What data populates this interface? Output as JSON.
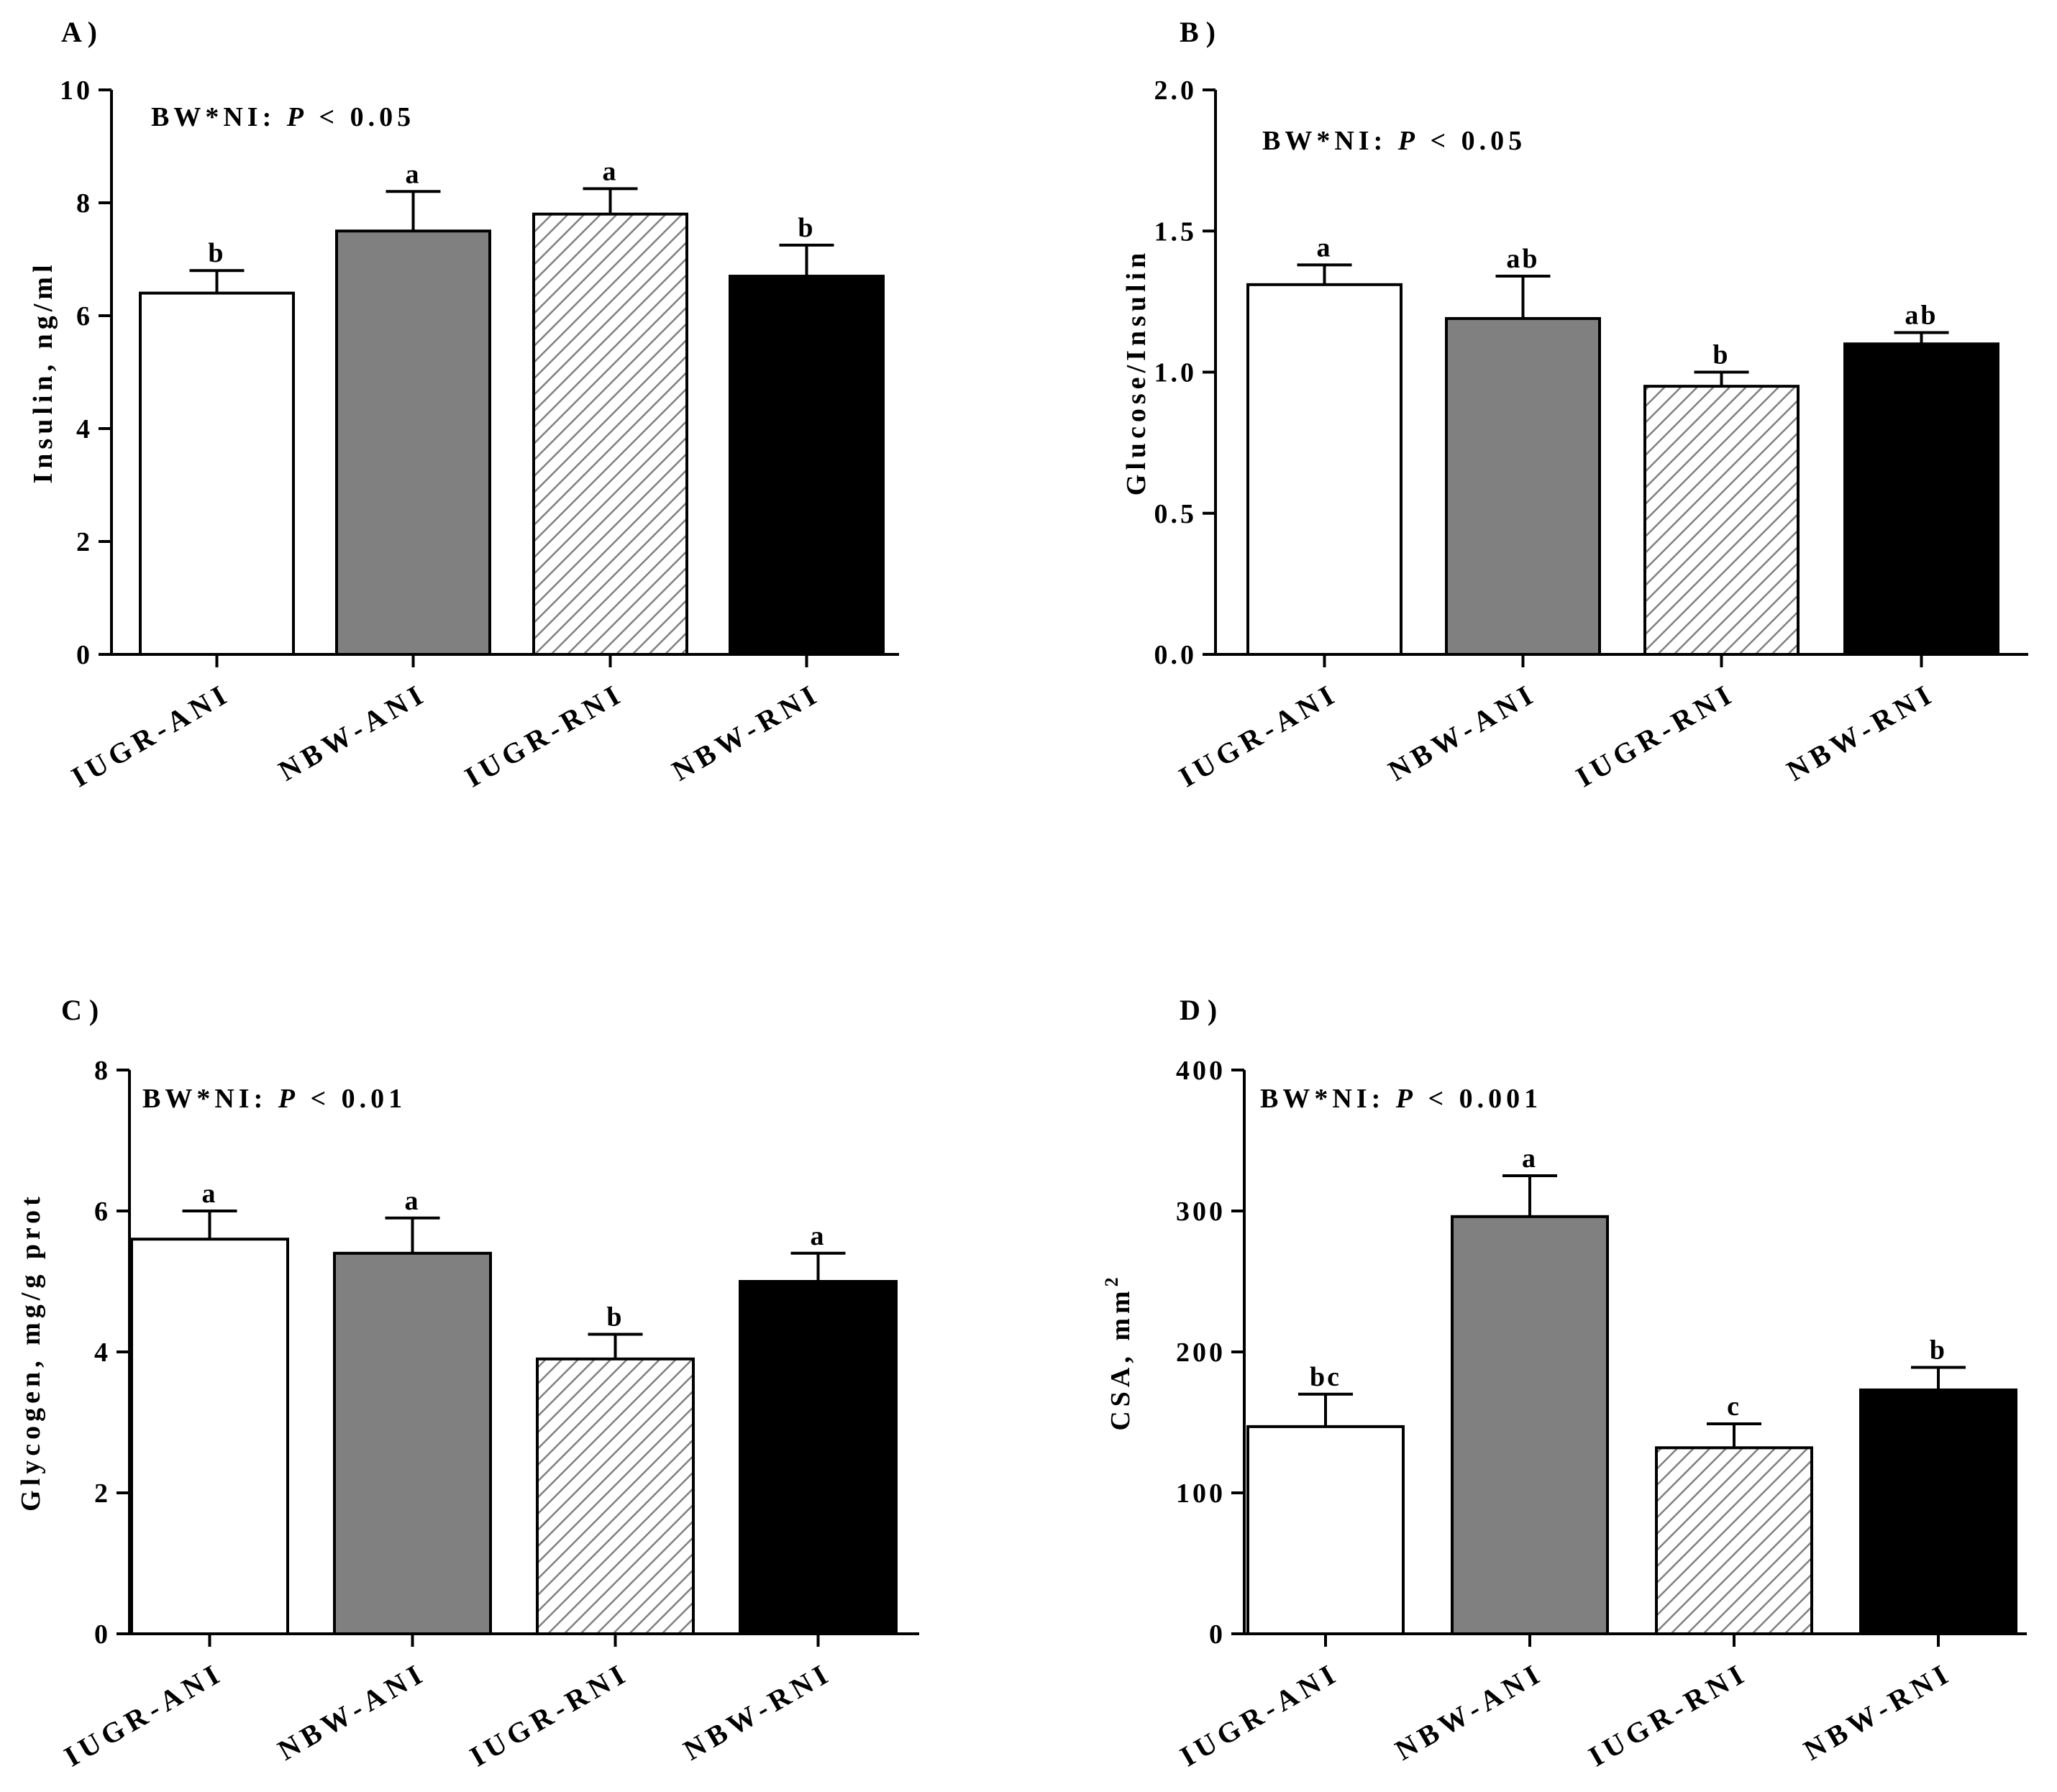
{
  "figure": {
    "categories": [
      "IUGR-ANI",
      "NBW-ANI",
      "IUGR-RNI",
      "NBW-RNI"
    ],
    "bar_styles": [
      {
        "fill": "#ffffff",
        "pattern": "none"
      },
      {
        "fill": "#808080",
        "pattern": "none"
      },
      {
        "fill": "#ffffff",
        "pattern": "hatch"
      },
      {
        "fill": "#000000",
        "pattern": "none"
      }
    ]
  },
  "chart_data": [
    {
      "type": "bar",
      "panel": "A )",
      "ylabel": "Insulin, ng/ml",
      "annotation_prefix": "BW*NI:",
      "annotation_p": "P",
      "annotation_suffix": "< 0.05",
      "ylim": [
        0,
        10
      ],
      "yticks": [
        0,
        2,
        4,
        6,
        8,
        10
      ],
      "ytick_labels": [
        "0",
        "2",
        "4",
        "6",
        "8",
        "10"
      ],
      "categories": [
        "IUGR-ANI",
        "NBW-ANI",
        "IUGR-RNI",
        "NBW-RNI"
      ],
      "values": [
        6.4,
        7.5,
        7.8,
        6.7
      ],
      "errors": [
        0.4,
        0.7,
        0.45,
        0.55
      ],
      "letters": [
        "b",
        "a",
        "a",
        "b"
      ]
    },
    {
      "type": "bar",
      "panel": "B )",
      "ylabel": "Glucose/Insulin",
      "annotation_prefix": "BW*NI:",
      "annotation_p": "P",
      "annotation_suffix": "< 0.05",
      "ylim": [
        0,
        2.0
      ],
      "yticks": [
        0,
        0.5,
        1.0,
        1.5,
        2.0
      ],
      "ytick_labels": [
        "0.0",
        "0.5",
        "1.0",
        "1.5",
        "2.0"
      ],
      "categories": [
        "IUGR-ANI",
        "NBW-ANI",
        "IUGR-RNI",
        "NBW-RNI"
      ],
      "values": [
        1.31,
        1.19,
        0.95,
        1.1
      ],
      "errors": [
        0.07,
        0.15,
        0.05,
        0.04
      ],
      "letters": [
        "a",
        "ab",
        "b",
        "ab"
      ]
    },
    {
      "type": "bar",
      "panel": "C )",
      "ylabel": "Glycogen, mg/g prot",
      "annotation_prefix": "BW*NI:",
      "annotation_p": "P",
      "annotation_suffix": "< 0.01",
      "ylim": [
        0,
        8
      ],
      "yticks": [
        0,
        2,
        4,
        6,
        8
      ],
      "ytick_labels": [
        "0",
        "2",
        "4",
        "6",
        "8"
      ],
      "categories": [
        "IUGR-ANI",
        "NBW-ANI",
        "IUGR-RNI",
        "NBW-RNI"
      ],
      "values": [
        5.6,
        5.4,
        3.9,
        5.0
      ],
      "errors": [
        0.4,
        0.5,
        0.35,
        0.4
      ],
      "letters": [
        "a",
        "a",
        "b",
        "a"
      ]
    },
    {
      "type": "bar",
      "panel": "D )",
      "ylabel": "CSA, mm",
      "ylabel_sup": "2",
      "annotation_prefix": "BW*NI:",
      "annotation_p": "P",
      "annotation_suffix": "< 0.001",
      "ylim": [
        0,
        400
      ],
      "yticks": [
        0,
        100,
        200,
        300,
        400
      ],
      "ytick_labels": [
        "0",
        "100",
        "200",
        "300",
        "400"
      ],
      "categories": [
        "IUGR-ANI",
        "NBW-ANI",
        "IUGR-RNI",
        "NBW-RNI"
      ],
      "values": [
        147,
        296,
        132,
        173
      ],
      "errors": [
        23,
        29,
        17,
        16
      ],
      "letters": [
        "bc",
        "a",
        "c",
        "b"
      ]
    }
  ]
}
